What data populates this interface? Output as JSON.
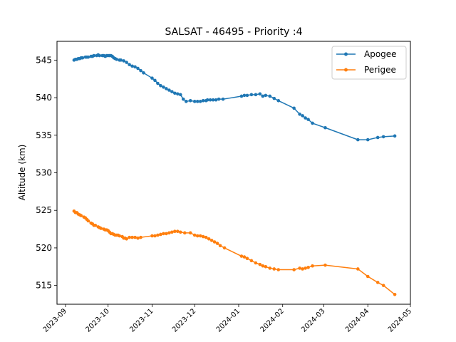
{
  "chart_data": {
    "type": "line",
    "title": "SALSAT - 46495 - Priority :4",
    "xlabel": "",
    "ylabel": "Altitude (km)",
    "x_type": "date",
    "xlim": [
      "2023-08-26",
      "2024-05-01"
    ],
    "ylim": [
      512.5,
      547.5
    ],
    "x_ticks": [
      "2023-09",
      "2023-10",
      "2023-11",
      "2023-12",
      "2024-01",
      "2024-02",
      "2024-03",
      "2024-04",
      "2024-05"
    ],
    "y_ticks": [
      515,
      520,
      525,
      530,
      535,
      540,
      545
    ],
    "grid": false,
    "legend_position": "top-right",
    "series": [
      {
        "name": "Apogee",
        "color": "#1f77b4",
        "x": [
          "2023-09-07",
          "2023-09-08",
          "2023-09-09",
          "2023-09-10",
          "2023-09-11",
          "2023-09-12",
          "2023-09-13",
          "2023-09-15",
          "2023-09-16",
          "2023-09-17",
          "2023-09-19",
          "2023-09-20",
          "2023-09-21",
          "2023-09-23",
          "2023-09-24",
          "2023-09-25",
          "2023-09-27",
          "2023-09-28",
          "2023-09-29",
          "2023-09-30",
          "2023-10-01",
          "2023-10-02",
          "2023-10-03",
          "2023-10-04",
          "2023-10-05",
          "2023-10-06",
          "2023-10-07",
          "2023-10-09",
          "2023-10-10",
          "2023-10-12",
          "2023-10-14",
          "2023-10-16",
          "2023-10-18",
          "2023-10-20",
          "2023-10-22",
          "2023-10-24",
          "2023-10-26",
          "2023-11-01",
          "2023-11-03",
          "2023-11-05",
          "2023-11-07",
          "2023-11-09",
          "2023-11-11",
          "2023-11-13",
          "2023-11-15",
          "2023-11-17",
          "2023-11-19",
          "2023-11-21",
          "2023-11-23",
          "2023-11-25",
          "2023-11-28",
          "2023-12-01",
          "2023-12-03",
          "2023-12-05",
          "2023-12-07",
          "2023-12-09",
          "2023-12-10",
          "2023-12-12",
          "2023-12-14",
          "2023-12-16",
          "2023-12-18",
          "2023-12-21",
          "2024-01-03",
          "2024-01-05",
          "2024-01-07",
          "2024-01-10",
          "2024-01-13",
          "2024-01-16",
          "2024-01-18",
          "2024-01-20",
          "2024-01-23",
          "2024-01-26",
          "2024-01-29",
          "2024-02-09",
          "2024-02-13",
          "2024-02-15",
          "2024-02-17",
          "2024-02-19",
          "2024-02-22",
          "2024-03-02",
          "2024-03-25",
          "2024-04-01",
          "2024-04-08",
          "2024-04-12",
          "2024-04-20"
        ],
        "y": [
          545.0,
          545.1,
          545.1,
          545.2,
          545.2,
          545.3,
          545.3,
          545.4,
          545.4,
          545.4,
          545.5,
          545.5,
          545.6,
          545.6,
          545.7,
          545.6,
          545.6,
          545.6,
          545.5,
          545.6,
          545.6,
          545.6,
          545.6,
          545.5,
          545.3,
          545.2,
          545.1,
          545.0,
          545.0,
          544.9,
          544.7,
          544.4,
          544.2,
          544.1,
          543.9,
          543.6,
          543.3,
          542.6,
          542.3,
          541.9,
          541.6,
          541.4,
          541.2,
          541.0,
          540.8,
          540.6,
          540.5,
          540.4,
          539.8,
          539.5,
          539.6,
          539.5,
          539.5,
          539.5,
          539.6,
          539.6,
          539.7,
          539.7,
          539.7,
          539.7,
          539.8,
          539.8,
          540.2,
          540.3,
          540.3,
          540.4,
          540.4,
          540.5,
          540.2,
          540.3,
          540.2,
          539.9,
          539.6,
          538.6,
          537.8,
          537.6,
          537.3,
          537.1,
          536.6,
          536.0,
          534.4,
          534.4,
          534.7,
          534.8,
          534.9
        ]
      },
      {
        "name": "Perigee",
        "color": "#ff7f0e",
        "x": [
          "2023-09-07",
          "2023-09-08",
          "2023-09-09",
          "2023-09-10",
          "2023-09-11",
          "2023-09-12",
          "2023-09-14",
          "2023-09-15",
          "2023-09-16",
          "2023-09-17",
          "2023-09-19",
          "2023-09-20",
          "2023-09-21",
          "2023-09-22",
          "2023-09-24",
          "2023-09-25",
          "2023-09-26",
          "2023-09-28",
          "2023-09-29",
          "2023-09-30",
          "2023-10-01",
          "2023-10-02",
          "2023-10-03",
          "2023-10-04",
          "2023-10-05",
          "2023-10-06",
          "2023-10-07",
          "2023-10-08",
          "2023-10-09",
          "2023-10-11",
          "2023-10-12",
          "2023-10-13",
          "2023-10-14",
          "2023-10-16",
          "2023-10-18",
          "2023-10-20",
          "2023-10-22",
          "2023-10-24",
          "2023-11-01",
          "2023-11-03",
          "2023-11-05",
          "2023-11-07",
          "2023-11-09",
          "2023-11-11",
          "2023-11-13",
          "2023-11-15",
          "2023-11-17",
          "2023-11-19",
          "2023-11-21",
          "2023-11-24",
          "2023-11-28",
          "2023-12-01",
          "2023-12-03",
          "2023-12-05",
          "2023-12-07",
          "2023-12-09",
          "2023-12-11",
          "2023-12-13",
          "2023-12-15",
          "2023-12-17",
          "2023-12-19",
          "2023-12-22",
          "2024-01-03",
          "2024-01-05",
          "2024-01-07",
          "2024-01-10",
          "2024-01-13",
          "2024-01-16",
          "2024-01-18",
          "2024-01-20",
          "2024-01-23",
          "2024-01-26",
          "2024-01-29",
          "2024-02-09",
          "2024-02-13",
          "2024-02-15",
          "2024-02-17",
          "2024-02-19",
          "2024-02-22",
          "2024-03-02",
          "2024-03-25",
          "2024-04-01",
          "2024-04-08",
          "2024-04-12",
          "2024-04-20"
        ],
        "y": [
          524.9,
          524.7,
          524.7,
          524.5,
          524.4,
          524.3,
          524.1,
          524.0,
          523.8,
          523.6,
          523.3,
          523.2,
          523.0,
          523.0,
          522.8,
          522.7,
          522.6,
          522.5,
          522.4,
          522.4,
          522.3,
          522.1,
          521.9,
          521.9,
          521.8,
          521.7,
          521.7,
          521.7,
          521.6,
          521.5,
          521.3,
          521.3,
          521.2,
          521.4,
          521.4,
          521.4,
          521.3,
          521.4,
          521.6,
          521.6,
          521.7,
          521.8,
          521.9,
          521.9,
          522.0,
          522.1,
          522.2,
          522.2,
          522.1,
          522.0,
          522.0,
          521.7,
          521.6,
          521.6,
          521.5,
          521.4,
          521.2,
          521.0,
          520.8,
          520.6,
          520.3,
          520.0,
          518.9,
          518.8,
          518.6,
          518.3,
          518.0,
          517.8,
          517.6,
          517.5,
          517.3,
          517.2,
          517.1,
          517.1,
          517.3,
          517.2,
          517.3,
          517.4,
          517.6,
          517.7,
          517.2,
          516.2,
          515.4,
          515.0,
          513.8
        ]
      }
    ]
  }
}
